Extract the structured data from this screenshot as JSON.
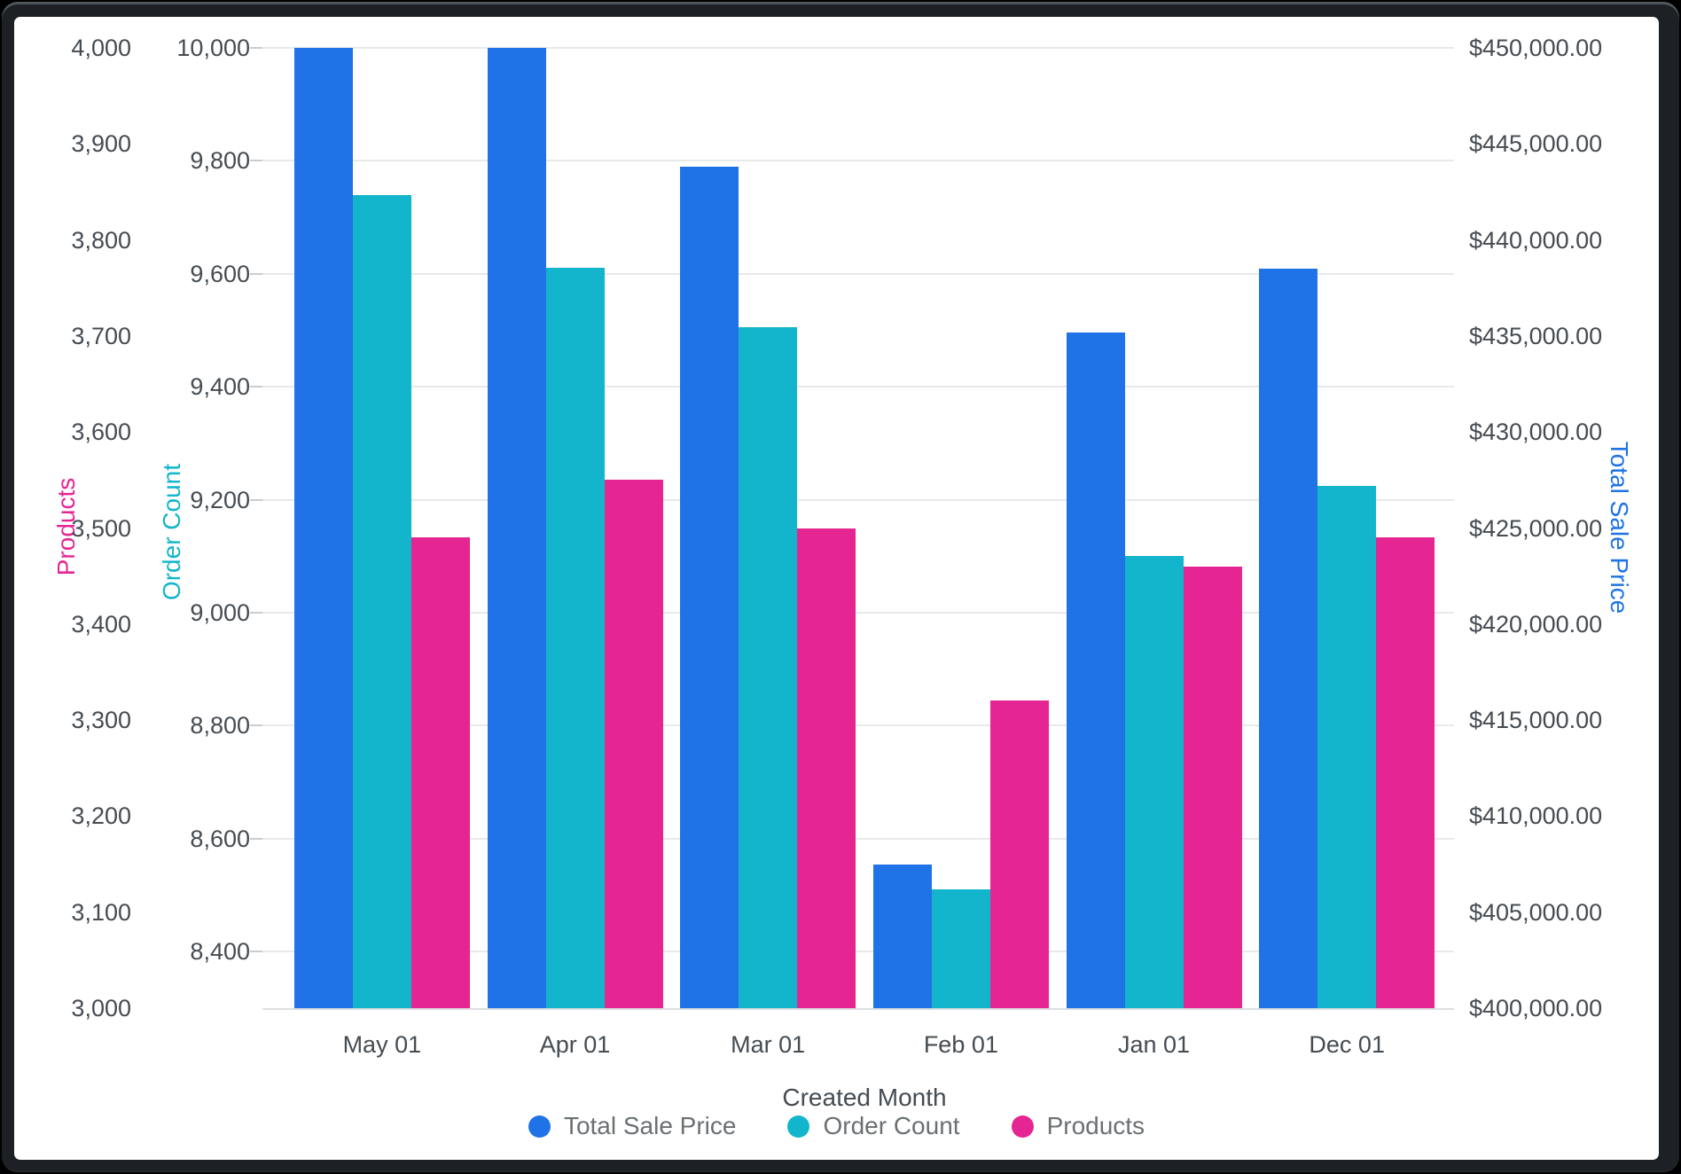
{
  "chart_data": {
    "type": "bar",
    "title": "",
    "categories": [
      "May 01",
      "Apr 01",
      "Mar 01",
      "Feb 01",
      "Jan 01",
      "Dec 01"
    ],
    "series": [
      {
        "name": "Total Sale Price",
        "axis": "price",
        "color": "#1f73e6",
        "values": [
          450000,
          450000,
          443800,
          407500,
          435200,
          438500
        ]
      },
      {
        "name": "Order Count",
        "axis": "order",
        "color": "#12b5cb",
        "values": [
          9740,
          9610,
          9505,
          8510,
          9100,
          9225
        ]
      },
      {
        "name": "Products",
        "axis": "products",
        "color": "#e52592",
        "values": [
          3490,
          3550,
          3500,
          3320,
          3460,
          3490
        ]
      }
    ],
    "x_axis": {
      "title": "Created Month"
    },
    "axes": {
      "products": {
        "title": "Products",
        "color": "#e52592",
        "side": "left",
        "min": 3000,
        "max": 4000,
        "ticks": [
          {
            "v": 4000,
            "label": "4,000"
          },
          {
            "v": 3900,
            "label": "3,900"
          },
          {
            "v": 3800,
            "label": "3,800"
          },
          {
            "v": 3700,
            "label": "3,700"
          },
          {
            "v": 3600,
            "label": "3,600"
          },
          {
            "v": 3500,
            "label": "3,500"
          },
          {
            "v": 3400,
            "label": "3,400"
          },
          {
            "v": 3300,
            "label": "3,300"
          },
          {
            "v": 3200,
            "label": "3,200"
          },
          {
            "v": 3100,
            "label": "3,100"
          },
          {
            "v": 3000,
            "label": "3,000"
          }
        ]
      },
      "order": {
        "title": "Order Count",
        "color": "#12b5cb",
        "side": "left",
        "min": 8300,
        "max": 10000,
        "gridlines": true,
        "ticks": [
          {
            "v": 10000,
            "label": "10,000"
          },
          {
            "v": 9800,
            "label": "9,800"
          },
          {
            "v": 9600,
            "label": "9,600"
          },
          {
            "v": 9400,
            "label": "9,400"
          },
          {
            "v": 9200,
            "label": "9,200"
          },
          {
            "v": 9000,
            "label": "9,000"
          },
          {
            "v": 8800,
            "label": "8,800"
          },
          {
            "v": 8600,
            "label": "8,600"
          },
          {
            "v": 8400,
            "label": "8,400"
          }
        ]
      },
      "price": {
        "title": "Total Sale Price",
        "color": "#1f73e6",
        "side": "right",
        "min": 400000,
        "max": 450000,
        "ticks": [
          {
            "v": 450000,
            "label": "$450,000.00"
          },
          {
            "v": 445000,
            "label": "$445,000.00"
          },
          {
            "v": 440000,
            "label": "$440,000.00"
          },
          {
            "v": 435000,
            "label": "$435,000.00"
          },
          {
            "v": 430000,
            "label": "$430,000.00"
          },
          {
            "v": 425000,
            "label": "$425,000.00"
          },
          {
            "v": 420000,
            "label": "$420,000.00"
          },
          {
            "v": 415000,
            "label": "$415,000.00"
          },
          {
            "v": 410000,
            "label": "$410,000.00"
          },
          {
            "v": 405000,
            "label": "$405,000.00"
          },
          {
            "v": 400000,
            "label": "$400,000.00"
          }
        ]
      }
    },
    "legend": {
      "position": "bottom",
      "entries": [
        {
          "label": "Total Sale Price",
          "color": "#1f73e6"
        },
        {
          "label": "Order Count",
          "color": "#12b5cb"
        },
        {
          "label": "Products",
          "color": "#e52592"
        }
      ]
    },
    "grid": "on"
  }
}
